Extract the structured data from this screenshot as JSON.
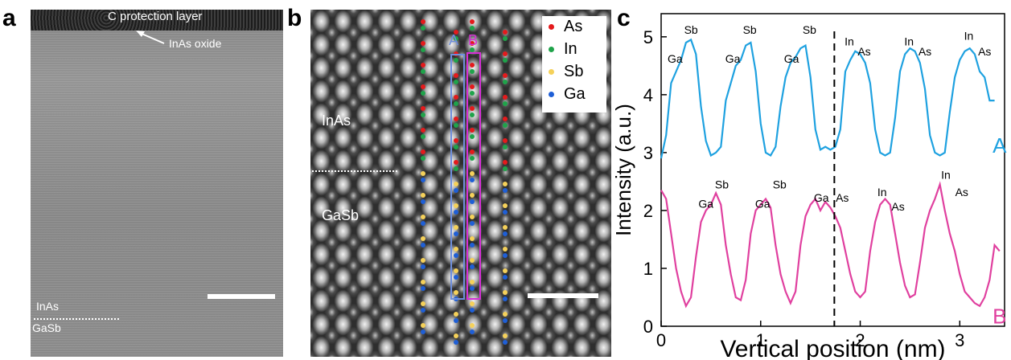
{
  "panel_a": {
    "letter": "a",
    "cap_label": "C protection layer",
    "oxide_label": "InAs oxide",
    "top_layer": "InAs",
    "bottom_layer": "GaSb"
  },
  "panel_b": {
    "letter": "b",
    "top_layer": "InAs",
    "bottom_layer": "GaSb",
    "column_a_label": "A",
    "column_b_label": "B",
    "legend": [
      {
        "label": "As",
        "color": "#e41a1c"
      },
      {
        "label": "In",
        "color": "#1fa34a"
      },
      {
        "label": "Sb",
        "color": "#f5d15a"
      },
      {
        "label": "Ga",
        "color": "#1f5fd6"
      }
    ],
    "column_a_color": "#6f8fdc",
    "column_b_color": "#d62fd6"
  },
  "chart_data": {
    "type": "line",
    "letter": "c",
    "xlabel": "Vertical position (nm)",
    "ylabel": "Intensity (a.u.)",
    "xlim": [
      0,
      3.45
    ],
    "ylim": [
      0,
      5.4
    ],
    "xticks": [
      "0",
      "1",
      "2",
      "3"
    ],
    "yticks": [
      "0",
      "1",
      "2",
      "3",
      "4",
      "5"
    ],
    "interface_x": 1.74,
    "series": [
      {
        "name": "A",
        "color": "#1ea1e0",
        "x": [
          0.0,
          0.05,
          0.1,
          0.15,
          0.2,
          0.25,
          0.3,
          0.35,
          0.4,
          0.45,
          0.5,
          0.55,
          0.6,
          0.65,
          0.7,
          0.75,
          0.8,
          0.85,
          0.9,
          0.95,
          1.0,
          1.05,
          1.1,
          1.15,
          1.2,
          1.25,
          1.3,
          1.35,
          1.4,
          1.45,
          1.5,
          1.55,
          1.6,
          1.65,
          1.7,
          1.75,
          1.8,
          1.85,
          1.9,
          1.95,
          2.0,
          2.05,
          2.1,
          2.15,
          2.2,
          2.25,
          2.3,
          2.35,
          2.4,
          2.45,
          2.5,
          2.55,
          2.6,
          2.65,
          2.7,
          2.75,
          2.8,
          2.85,
          2.9,
          2.95,
          3.0,
          3.05,
          3.1,
          3.15,
          3.2,
          3.25,
          3.3,
          3.35
        ],
        "values": [
          2.9,
          3.3,
          4.2,
          4.4,
          4.6,
          4.9,
          4.95,
          4.7,
          3.8,
          3.2,
          2.95,
          3.0,
          3.1,
          3.9,
          4.2,
          4.5,
          4.6,
          4.85,
          4.9,
          4.4,
          3.5,
          3.0,
          2.95,
          3.1,
          3.8,
          4.3,
          4.55,
          4.65,
          4.8,
          4.85,
          4.3,
          3.4,
          3.05,
          3.1,
          3.05,
          3.1,
          3.4,
          4.4,
          4.6,
          4.75,
          4.7,
          4.55,
          4.2,
          3.4,
          3.0,
          2.95,
          3.0,
          3.6,
          4.4,
          4.7,
          4.8,
          4.75,
          4.55,
          4.1,
          3.3,
          3.0,
          2.95,
          3.0,
          3.7,
          4.3,
          4.6,
          4.75,
          4.8,
          4.7,
          4.4,
          4.3,
          3.9,
          3.9
        ],
        "peak_labels": [
          {
            "text": "Ga",
            "x": 0.14,
            "y": 4.55
          },
          {
            "text": "Sb",
            "x": 0.3,
            "y": 5.05
          },
          {
            "text": "Ga",
            "x": 0.72,
            "y": 4.55
          },
          {
            "text": "Sb",
            "x": 0.89,
            "y": 5.05
          },
          {
            "text": "Ga",
            "x": 1.31,
            "y": 4.55
          },
          {
            "text": "Sb",
            "x": 1.49,
            "y": 5.05
          },
          {
            "text": "In",
            "x": 1.89,
            "y": 4.85
          },
          {
            "text": "As",
            "x": 2.04,
            "y": 4.68
          },
          {
            "text": "In",
            "x": 2.49,
            "y": 4.85
          },
          {
            "text": "As",
            "x": 2.65,
            "y": 4.68
          },
          {
            "text": "In",
            "x": 3.09,
            "y": 4.95
          },
          {
            "text": "As",
            "x": 3.25,
            "y": 4.68
          }
        ]
      },
      {
        "name": "B",
        "color": "#e0409f",
        "x": [
          0.0,
          0.05,
          0.1,
          0.15,
          0.2,
          0.25,
          0.3,
          0.35,
          0.4,
          0.45,
          0.5,
          0.55,
          0.6,
          0.65,
          0.7,
          0.75,
          0.8,
          0.85,
          0.9,
          0.95,
          1.0,
          1.05,
          1.1,
          1.15,
          1.2,
          1.25,
          1.3,
          1.35,
          1.4,
          1.45,
          1.5,
          1.55,
          1.6,
          1.65,
          1.7,
          1.75,
          1.8,
          1.85,
          1.9,
          1.95,
          2.0,
          2.05,
          2.1,
          2.15,
          2.2,
          2.25,
          2.3,
          2.35,
          2.4,
          2.45,
          2.5,
          2.55,
          2.6,
          2.65,
          2.7,
          2.75,
          2.8,
          2.85,
          2.9,
          2.95,
          3.0,
          3.05,
          3.1,
          3.15,
          3.2,
          3.25,
          3.3,
          3.35,
          3.4
        ],
        "values": [
          2.35,
          2.2,
          1.6,
          1.0,
          0.6,
          0.35,
          0.5,
          1.2,
          1.8,
          2.0,
          2.1,
          2.3,
          2.1,
          1.4,
          0.9,
          0.5,
          0.45,
          0.8,
          1.6,
          2.0,
          2.1,
          2.2,
          2.05,
          1.4,
          0.9,
          0.6,
          0.4,
          0.6,
          1.4,
          1.9,
          2.1,
          2.2,
          2.0,
          2.15,
          2.05,
          1.9,
          1.7,
          1.3,
          0.9,
          0.6,
          0.5,
          0.6,
          1.3,
          1.8,
          2.1,
          2.2,
          2.1,
          1.6,
          1.1,
          0.7,
          0.5,
          0.55,
          1.1,
          1.7,
          2.0,
          2.2,
          2.45,
          2.0,
          1.6,
          1.3,
          0.9,
          0.6,
          0.5,
          0.4,
          0.35,
          0.5,
          0.8,
          1.4,
          1.3
        ],
        "peak_labels": [
          {
            "text": "Ga",
            "x": 0.45,
            "y": 2.05
          },
          {
            "text": "Sb",
            "x": 0.61,
            "y": 2.38
          },
          {
            "text": "Ga",
            "x": 1.02,
            "y": 2.05
          },
          {
            "text": "Sb",
            "x": 1.19,
            "y": 2.38
          },
          {
            "text": "Ga",
            "x": 1.61,
            "y": 2.15
          },
          {
            "text": "As",
            "x": 1.82,
            "y": 2.15
          },
          {
            "text": "In",
            "x": 2.22,
            "y": 2.25
          },
          {
            "text": "As",
            "x": 2.38,
            "y": 2.0
          },
          {
            "text": "In",
            "x": 2.86,
            "y": 2.55
          },
          {
            "text": "As",
            "x": 3.02,
            "y": 2.25
          }
        ]
      }
    ]
  }
}
